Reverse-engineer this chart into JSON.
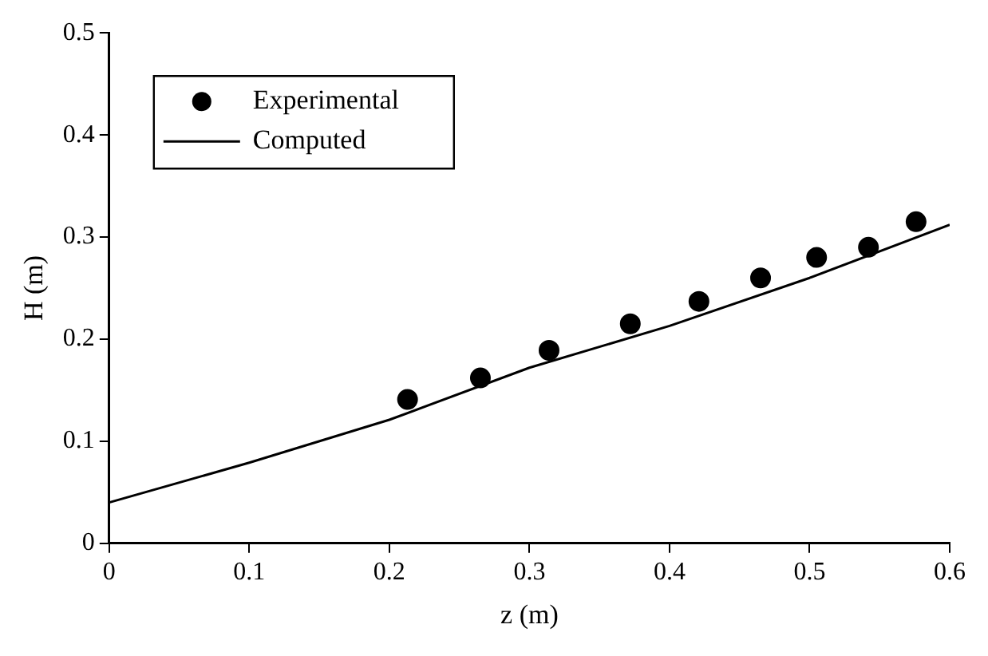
{
  "chart_data": {
    "type": "scatter",
    "xlabel": "z (m)",
    "ylabel": "H (m)",
    "xlim": [
      0,
      0.6
    ],
    "ylim": [
      0,
      0.5
    ],
    "xticks": [
      0,
      0.1,
      0.2,
      0.3,
      0.4,
      0.5,
      0.6
    ],
    "yticks": [
      0,
      0.1,
      0.2,
      0.3,
      0.4,
      0.5
    ],
    "grid": false,
    "legend": "top left",
    "series": [
      {
        "name": "Experimental",
        "type": "scatter",
        "marker": "circle",
        "color": "#000000",
        "x": [
          0.213,
          0.265,
          0.314,
          0.372,
          0.421,
          0.465,
          0.505,
          0.542,
          0.576
        ],
        "values": [
          0.141,
          0.162,
          0.189,
          0.215,
          0.237,
          0.26,
          0.28,
          0.29,
          0.315
        ]
      },
      {
        "name": "Computed",
        "type": "line",
        "marker": "none",
        "line_style": "solid",
        "color": "#000000",
        "x": [
          0,
          0.1,
          0.2,
          0.3,
          0.4,
          0.5,
          0.6
        ],
        "values": [
          0.04,
          0.079,
          0.121,
          0.172,
          0.213,
          0.26,
          0.312
        ]
      }
    ]
  }
}
